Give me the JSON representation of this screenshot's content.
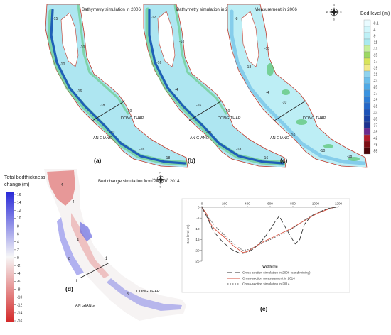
{
  "panels": {
    "a": {
      "letter": "(a)",
      "title": "Bathymetry simulation in 2006",
      "label_left": "AN GIANG",
      "label_right": "DONG THAP",
      "contours": [
        "-15",
        "-10",
        "-10",
        "-16",
        "-18",
        "-20",
        "-10",
        "-16",
        "-18"
      ]
    },
    "b": {
      "letter": "(b)",
      "title": "Bathymetry simulation in 2014",
      "label_left": "AN GIANG",
      "label_right": "DONG THAP",
      "contours": [
        "-12",
        "-16",
        "-18",
        "-4",
        "-16",
        "-10",
        "-10",
        "-18",
        "-16"
      ]
    },
    "c": {
      "letter": "(c)",
      "title": "Measurement in 2006",
      "label_left": "AN GIANG",
      "label_right": "DONG THAP",
      "contours": [
        "-8",
        "-18",
        "-10",
        "-4",
        "-10",
        "-16",
        "-10",
        "-18"
      ]
    },
    "d": {
      "letter": "(d)",
      "title": "Bed change simulation from 2006 to 2014",
      "label_left": "AN GIANG",
      "label_right": "DONG THAP",
      "section_start": "1",
      "section_end": "1",
      "contours": [
        "-4",
        "-4",
        "4",
        "8",
        "8"
      ]
    },
    "e": {
      "letter": "(e)"
    }
  },
  "bed_level_legend": {
    "title": "Bed level (m)",
    "entries": [
      {
        "label": "-0.1",
        "color": "#e9fbff"
      },
      {
        "label": "-4",
        "color": "#d2f6fb"
      },
      {
        "label": "-9",
        "color": "#bdf0f6"
      },
      {
        "label": "-11",
        "color": "#a9eaf0"
      },
      {
        "label": "-13",
        "color": "#c6ef9c"
      },
      {
        "label": "-15",
        "color": "#9cd862"
      },
      {
        "label": "-17",
        "color": "#d8e45a"
      },
      {
        "label": "-19",
        "color": "#f1e98a"
      },
      {
        "label": "-21",
        "color": "#8fd3ee"
      },
      {
        "label": "-23",
        "color": "#6cbfeb"
      },
      {
        "label": "-25",
        "color": "#4ea9e6"
      },
      {
        "label": "-27",
        "color": "#3a93e0"
      },
      {
        "label": "-29",
        "color": "#2d7dd6"
      },
      {
        "label": "-31",
        "color": "#2467c8"
      },
      {
        "label": "-33",
        "color": "#1d53b8"
      },
      {
        "label": "-35",
        "color": "#1a41a4"
      },
      {
        "label": "-37",
        "color": "#1c3290"
      },
      {
        "label": "-39",
        "color": "#6b2a8e"
      },
      {
        "label": "-42",
        "color": "#b01c2b"
      },
      {
        "label": "-48",
        "color": "#7d0e14"
      },
      {
        "label": "-55",
        "color": "#4a0608"
      }
    ]
  },
  "thickness_legend": {
    "title_line1": "Total bedthickness",
    "title_line2": "change (m)",
    "ticks": [
      "16",
      "14",
      "12",
      "10",
      "8",
      "6",
      "4",
      "2",
      "0",
      "-2",
      "-4",
      "-6",
      "-8",
      "-10",
      "-12",
      "-14",
      "-16"
    ],
    "range": [
      -16,
      16
    ],
    "colors": {
      "positive": "#2a2ad8",
      "zero": "#f7f7f7",
      "negative": "#d42a2a"
    }
  },
  "compass": {
    "north": "N",
    "south": "S",
    "east": "E",
    "west": "W"
  },
  "chart_data": {
    "type": "line",
    "title": "",
    "xlabel": "Width (m)",
    "ylabel": "Bed level (m)",
    "xlim": [
      0,
      1200
    ],
    "ylim": [
      -25,
      0
    ],
    "x_ticks": [
      "0",
      "200",
      "400",
      "600",
      "800",
      "1000",
      "1200"
    ],
    "y_ticks": [
      "0",
      "-5",
      "-10",
      "-15",
      "-20",
      "-25"
    ],
    "grid": false,
    "legend_position": "bottom",
    "series": [
      {
        "name": "Cross-section simulation in 2006 (sand mining)",
        "color": "#333333",
        "dash": "7,3",
        "points": [
          [
            0,
            0
          ],
          [
            40,
            -4
          ],
          [
            100,
            -11
          ],
          [
            180,
            -16
          ],
          [
            260,
            -19.5
          ],
          [
            340,
            -21.5
          ],
          [
            400,
            -21
          ],
          [
            460,
            -19
          ],
          [
            520,
            -16
          ],
          [
            580,
            -12
          ],
          [
            640,
            -7
          ],
          [
            680,
            -4
          ],
          [
            720,
            -8
          ],
          [
            780,
            -13.5
          ],
          [
            820,
            -17
          ],
          [
            860,
            -15
          ],
          [
            900,
            -8
          ],
          [
            960,
            -4
          ],
          [
            1040,
            -2
          ],
          [
            1120,
            -0.5
          ],
          [
            1180,
            0
          ]
        ]
      },
      {
        "name": "Cross-section measurement in 2014",
        "color": "#d64f3c",
        "dash": "",
        "points": [
          [
            0,
            0
          ],
          [
            40,
            -3
          ],
          [
            80,
            -8
          ],
          [
            110,
            -10
          ],
          [
            200,
            -14
          ],
          [
            280,
            -18
          ],
          [
            360,
            -21
          ],
          [
            400,
            -20.5
          ],
          [
            460,
            -18.5
          ],
          [
            540,
            -16
          ],
          [
            620,
            -14
          ],
          [
            700,
            -12
          ],
          [
            780,
            -10
          ],
          [
            860,
            -7.5
          ],
          [
            940,
            -5
          ],
          [
            1010,
            -3
          ],
          [
            1080,
            -1.5
          ],
          [
            1160,
            0
          ]
        ]
      },
      {
        "name": "Cross-section simulation in 2014",
        "color": "#555555",
        "dash": "1.5,2",
        "points": [
          [
            0,
            0
          ],
          [
            60,
            -5
          ],
          [
            120,
            -9
          ],
          [
            200,
            -13
          ],
          [
            280,
            -17
          ],
          [
            360,
            -20
          ],
          [
            420,
            -19.5
          ],
          [
            500,
            -17.5
          ],
          [
            580,
            -15.5
          ],
          [
            660,
            -13.5
          ],
          [
            740,
            -11.5
          ],
          [
            820,
            -9
          ],
          [
            900,
            -6
          ],
          [
            980,
            -3.5
          ],
          [
            1060,
            -1.5
          ],
          [
            1140,
            -0.3
          ],
          [
            1180,
            0
          ]
        ]
      }
    ]
  }
}
